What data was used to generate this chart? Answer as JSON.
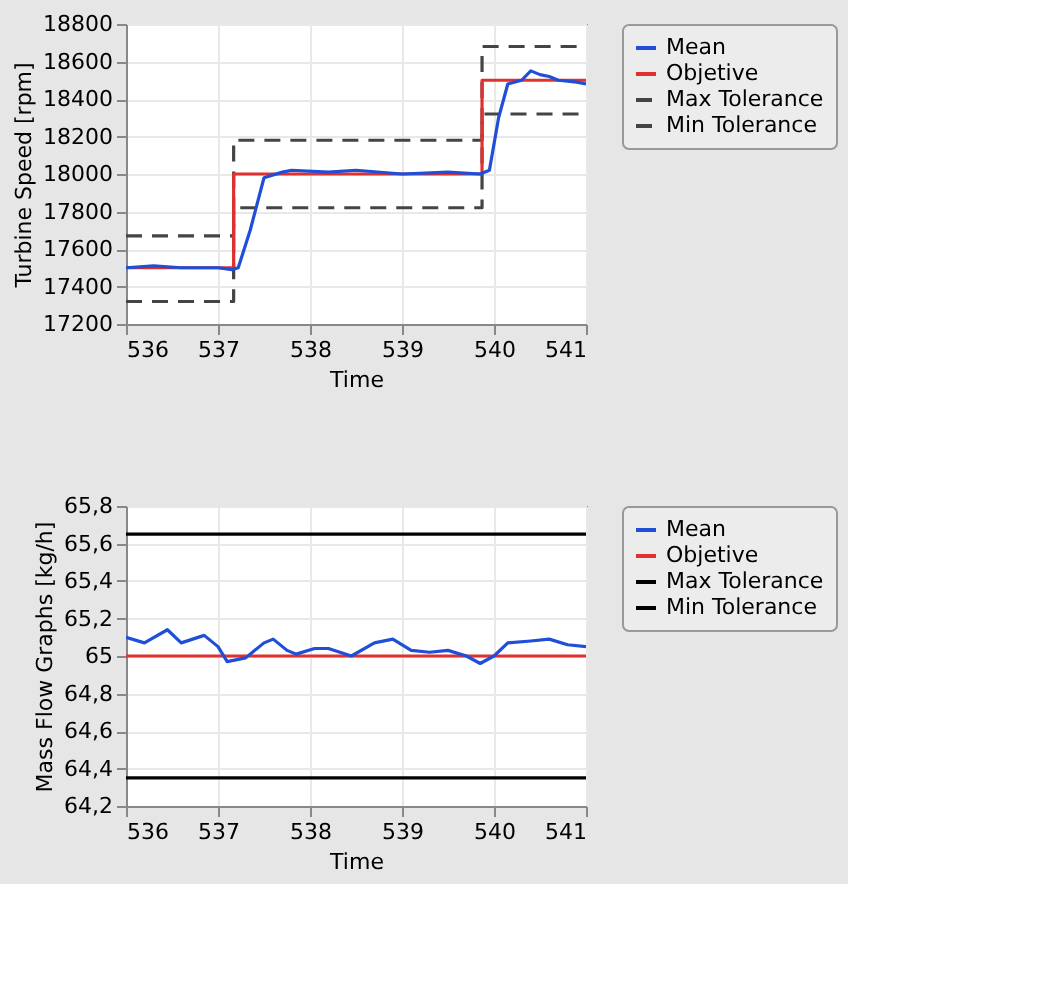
{
  "chart_data": [
    {
      "type": "line",
      "xlabel": "Time",
      "ylabel": "Turbine Speed  [rpm]",
      "xlim": [
        536,
        541
      ],
      "xticks": [
        536,
        537,
        538,
        539,
        540,
        541
      ],
      "ylim": [
        17200,
        18800
      ],
      "yticks": [
        17200,
        17400,
        17600,
        17800,
        18000,
        18200,
        18400,
        18600,
        18800
      ],
      "grid": true,
      "legend": "right",
      "marker": "none",
      "series": [
        {
          "name": "Mean",
          "color": "#1f4fd6",
          "line_style": "solid",
          "x": [
            536,
            536.3,
            536.6,
            537.0,
            537.15,
            537.22,
            537.35,
            537.5,
            537.7,
            537.8,
            538.2,
            538.5,
            539.0,
            539.5,
            539.85,
            539.95,
            540.05,
            540.15,
            540.3,
            540.4,
            540.5,
            540.6,
            540.7,
            540.9,
            541
          ],
          "values": [
            17500,
            17510,
            17500,
            17500,
            17490,
            17500,
            17700,
            17980,
            18010,
            18020,
            18010,
            18020,
            18000,
            18010,
            18000,
            18020,
            18300,
            18480,
            18500,
            18550,
            18530,
            18520,
            18500,
            18490,
            18480
          ]
        },
        {
          "name": "Objetive",
          "color": "#e03030",
          "line_style": "solid",
          "x": [
            536,
            537.17,
            537.17,
            539.87,
            539.87,
            541
          ],
          "values": [
            17500,
            17500,
            18000,
            18000,
            18500,
            18500
          ]
        },
        {
          "name": "Max Tolerance",
          "color": "#444444",
          "line_style": "dashed",
          "x": [
            536,
            537.17,
            537.17,
            539.87,
            539.87,
            541
          ],
          "values": [
            17670,
            17670,
            18180,
            18180,
            18680,
            18680
          ]
        },
        {
          "name": "Min Tolerance",
          "color": "#444444",
          "line_style": "dashed",
          "x": [
            536,
            537.17,
            537.17,
            539.87,
            539.87,
            541
          ],
          "values": [
            17320,
            17320,
            17820,
            17820,
            18320,
            18320
          ]
        }
      ]
    },
    {
      "type": "line",
      "xlabel": "Time",
      "ylabel": "Mass Flow Graphs  [kg/h]",
      "xlim": [
        536,
        541
      ],
      "xticks": [
        536,
        537,
        538,
        539,
        540,
        541
      ],
      "ylim": [
        64.2,
        65.8
      ],
      "yticks": [
        {
          "value": 64.2,
          "label": "64,2"
        },
        {
          "value": 64.4,
          "label": "64,4"
        },
        {
          "value": 64.6,
          "label": "64,6"
        },
        {
          "value": 64.8,
          "label": "64,8"
        },
        65,
        {
          "value": 65.2,
          "label": "65,2"
        },
        {
          "value": 65.4,
          "label": "65,4"
        },
        {
          "value": 65.6,
          "label": "65,6"
        },
        {
          "value": 65.8,
          "label": "65,8"
        }
      ],
      "grid": true,
      "legend": "right",
      "marker": "none",
      "series": [
        {
          "name": "Mean",
          "color": "#1f4fd6",
          "line_style": "solid",
          "x": [
            536,
            536.2,
            536.45,
            536.6,
            536.85,
            537.0,
            537.1,
            537.3,
            537.5,
            537.6,
            537.75,
            537.85,
            538.05,
            538.2,
            538.45,
            538.7,
            538.9,
            539.1,
            539.3,
            539.5,
            539.7,
            539.85,
            540.0,
            540.15,
            540.4,
            540.6,
            540.8,
            541
          ],
          "values": [
            65.1,
            65.07,
            65.14,
            65.07,
            65.11,
            65.05,
            64.97,
            64.99,
            65.07,
            65.09,
            65.03,
            65.01,
            65.04,
            65.04,
            65.0,
            65.07,
            65.09,
            65.03,
            65.02,
            65.03,
            65.0,
            64.96,
            65.0,
            65.07,
            65.08,
            65.09,
            65.06,
            65.05
          ]
        },
        {
          "name": "Objetive",
          "color": "#e03030",
          "line_style": "solid",
          "x": [
            536,
            541
          ],
          "values": [
            65.0,
            65.0
          ]
        },
        {
          "name": "Max Tolerance",
          "color": "#000000",
          "line_style": "solid",
          "x": [
            536,
            541
          ],
          "values": [
            65.65,
            65.65
          ]
        },
        {
          "name": "Min Tolerance",
          "color": "#000000",
          "line_style": "solid",
          "x": [
            536,
            541
          ],
          "values": [
            64.35,
            64.35
          ]
        }
      ]
    }
  ]
}
